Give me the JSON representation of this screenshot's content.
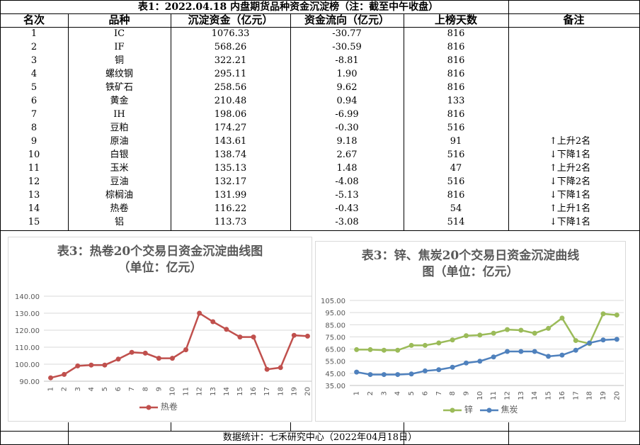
{
  "table": {
    "title": "表1：2022.04.18 内盘期货品种资金沉淀榜（注：截至中午收盘）",
    "headers": [
      "名次",
      "品种",
      "沉淀资金（亿元）",
      "资金流向（亿元）",
      "上榜天数",
      "备注"
    ],
    "rows": [
      {
        "rank": "1",
        "name": "IC",
        "amount": "1076.33",
        "flow": "-30.77",
        "days": "816",
        "note": ""
      },
      {
        "rank": "2",
        "name": "IF",
        "amount": "568.26",
        "flow": "-30.59",
        "days": "816",
        "note": ""
      },
      {
        "rank": "3",
        "name": "铜",
        "amount": "322.21",
        "flow": "-8.81",
        "days": "816",
        "note": ""
      },
      {
        "rank": "4",
        "name": "螺纹钢",
        "amount": "295.11",
        "flow": "1.90",
        "days": "816",
        "note": ""
      },
      {
        "rank": "5",
        "name": "铁矿石",
        "amount": "258.56",
        "flow": "9.62",
        "days": "816",
        "note": ""
      },
      {
        "rank": "6",
        "name": "黄金",
        "amount": "210.48",
        "flow": "0.94",
        "days": "133",
        "note": ""
      },
      {
        "rank": "7",
        "name": "IH",
        "amount": "198.06",
        "flow": "-6.99",
        "days": "816",
        "note": ""
      },
      {
        "rank": "8",
        "name": "豆粕",
        "amount": "174.27",
        "flow": "-0.30",
        "days": "516",
        "note": ""
      },
      {
        "rank": "9",
        "name": "原油",
        "amount": "143.61",
        "flow": "9.18",
        "days": "91",
        "note": "上升2名",
        "dir": "up"
      },
      {
        "rank": "10",
        "name": "白银",
        "amount": "138.74",
        "flow": "2.67",
        "days": "516",
        "note": "下降1名",
        "dir": "down"
      },
      {
        "rank": "11",
        "name": "玉米",
        "amount": "135.13",
        "flow": "1.48",
        "days": "47",
        "note": "上升2名",
        "dir": "up"
      },
      {
        "rank": "12",
        "name": "豆油",
        "amount": "132.17",
        "flow": "-4.08",
        "days": "516",
        "note": "下降2名",
        "dir": "down"
      },
      {
        "rank": "13",
        "name": "棕榈油",
        "amount": "131.99",
        "flow": "-5.13",
        "days": "816",
        "note": "下降1名",
        "dir": "down"
      },
      {
        "rank": "14",
        "name": "热卷",
        "amount": "116.22",
        "flow": "-0.43",
        "days": "54",
        "note": "上升1名",
        "dir": "up"
      },
      {
        "rank": "15",
        "name": "铝",
        "amount": "113.73",
        "flow": "-3.08",
        "days": "514",
        "note": "下降1名",
        "dir": "down"
      }
    ]
  },
  "chart_data": [
    {
      "type": "line",
      "title": "表3：热卷20个交易日资金沉淀曲线图",
      "subtitle": "（单位：亿元）",
      "x": [
        1,
        2,
        3,
        4,
        5,
        6,
        7,
        8,
        9,
        10,
        11,
        12,
        13,
        14,
        15,
        16,
        17,
        18,
        19,
        20
      ],
      "ylim": [
        90,
        140
      ],
      "yticks": [
        "90.00",
        "100.00",
        "110.00",
        "120.00",
        "130.00",
        "140.00"
      ],
      "grid": true,
      "legend_position": "bottom",
      "series": [
        {
          "name": "热卷",
          "color": "#c0504d",
          "values": [
            92,
            94,
            99,
            99.5,
            99.5,
            103,
            107,
            106.5,
            103.5,
            103.5,
            108.5,
            130,
            125,
            120.5,
            116,
            116,
            97,
            98,
            117,
            116.5
          ]
        }
      ]
    },
    {
      "type": "line",
      "title": "表3：锌、焦炭20个交易日资金沉淀曲线",
      "subtitle": "图（单位：亿元）",
      "x": [
        1,
        2,
        3,
        4,
        5,
        6,
        7,
        8,
        9,
        10,
        11,
        12,
        13,
        14,
        15,
        16,
        17,
        18,
        19,
        20
      ],
      "ylim": [
        35,
        105
      ],
      "yticks": [
        "35.00",
        "45.00",
        "55.00",
        "65.00",
        "75.00",
        "85.00",
        "95.00",
        "105.00"
      ],
      "grid": true,
      "legend_position": "bottom",
      "series": [
        {
          "name": "锌",
          "color": "#9bbb59",
          "values": [
            64.5,
            64.5,
            64,
            64,
            68,
            68,
            70,
            72.5,
            76,
            76.5,
            78,
            81,
            80.5,
            78,
            82,
            90.5,
            72,
            69.5,
            94,
            93
          ]
        },
        {
          "name": "焦炭",
          "color": "#4f81bd",
          "values": [
            46,
            44,
            44,
            44,
            44.5,
            47,
            48,
            50,
            53.5,
            55,
            58.5,
            63,
            63,
            63,
            59,
            60,
            64,
            70,
            72.5,
            73
          ]
        }
      ]
    }
  ],
  "footer": "数据统计：七禾研究中心（2022年04月18日）"
}
